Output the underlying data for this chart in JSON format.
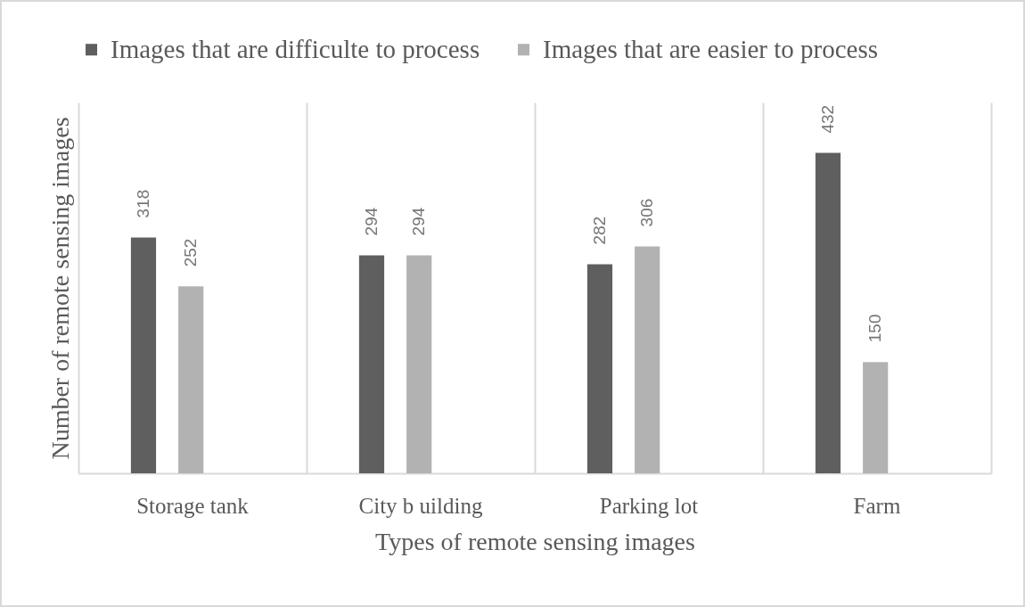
{
  "chart_data": {
    "type": "bar",
    "xlabel": "Types of remote sensing images",
    "ylabel": "Number of remote sensing images",
    "categories": [
      "Storage tank",
      "City b uilding",
      "Parking lot",
      "Farm"
    ],
    "series": [
      {
        "name": "Images that are difficulte to process",
        "color": "#5f5f5f",
        "values": [
          318,
          294,
          282,
          432
        ]
      },
      {
        "name": "Images that are easier to process",
        "color": "#b2b2b2",
        "values": [
          252,
          294,
          306,
          150
        ]
      }
    ],
    "data_labels": true,
    "legend": "top",
    "grid": "x",
    "tick_labels": "x"
  }
}
